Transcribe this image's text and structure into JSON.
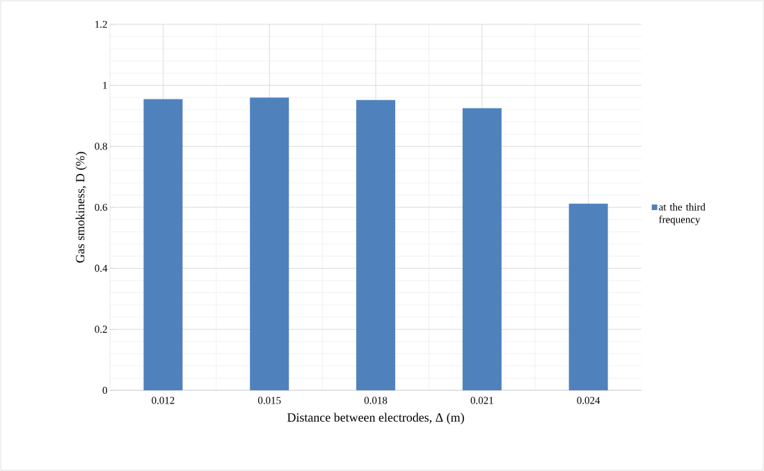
{
  "chart_data": {
    "type": "bar",
    "xlabel": "Distance between electrodes, Δ (m)",
    "ylabel": "Gas smokiness, D (%)",
    "categories": [
      "0.012",
      "0.015",
      "0.018",
      "0.021",
      "0.024"
    ],
    "series": [
      {
        "name": "at the third frequency",
        "color": "#4f81bd",
        "values": [
          0.955,
          0.96,
          0.952,
          0.925,
          0.612
        ]
      }
    ],
    "ylim": [
      0,
      1.2
    ],
    "yticks": [
      0,
      0.2,
      0.4,
      0.6,
      0.8,
      1,
      1.2
    ],
    "grid": true,
    "legend": "right"
  }
}
